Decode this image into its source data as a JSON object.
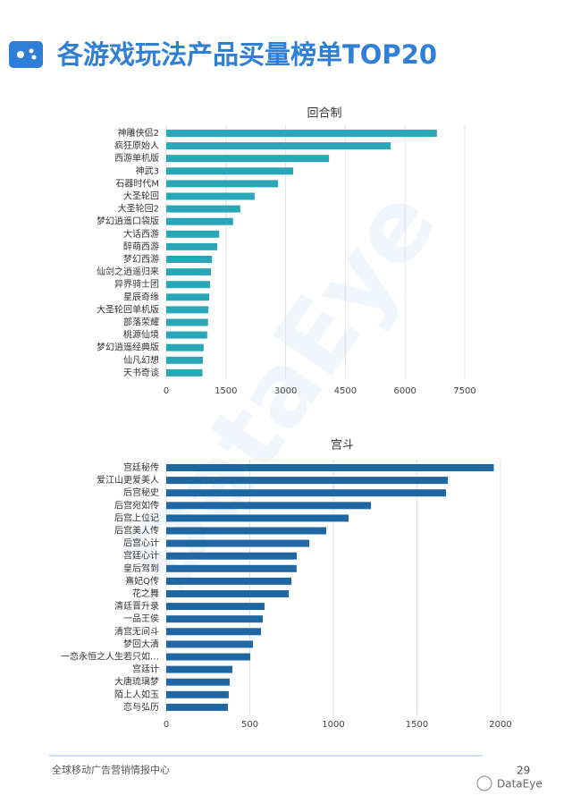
{
  "header": {
    "title": "各游戏玩法产品买量榜单TOP20"
  },
  "chart_data": [
    {
      "type": "bar",
      "orientation": "horizontal",
      "title": "回合制",
      "categories": [
        "神雕侠侣2",
        "疯狂原始人",
        "西游单机版",
        "神武3",
        "石器时代M",
        "大圣轮回",
        "大圣轮回2",
        "梦幻逍遥口袋版",
        "大话西游",
        "醉萌西游",
        "梦幻西游",
        "仙剑之逍遥归来",
        "异界骑士团",
        "星辰奇缘",
        "大圣轮回单机版",
        "部落荣耀",
        "桃源仙境",
        "梦幻逍遥经典版",
        "仙凡幻想",
        "天书奇谈"
      ],
      "values": [
        6800,
        5640,
        4090,
        3190,
        2810,
        2220,
        1860,
        1680,
        1330,
        1280,
        1150,
        1120,
        1100,
        1080,
        1060,
        1050,
        1030,
        940,
        920,
        910
      ],
      "color": "#2aa7b6",
      "xlim": [
        0,
        7500
      ],
      "xticks": [
        0,
        1500,
        3000,
        4500,
        6000,
        7500
      ],
      "grid": true
    },
    {
      "type": "bar",
      "orientation": "horizontal",
      "title": "宫斗",
      "categories": [
        "宫廷秘传",
        "爱江山更爱美人",
        "后宫秘史",
        "后宫宛如传",
        "后宫上位记",
        "后宫美人传",
        "后宫心计",
        "宫廷心计",
        "皇后驾到",
        "熹妃Q传",
        "花之舞",
        "清廷晋升录",
        "一品王侯",
        "清宫无间斗",
        "梦回大清",
        "一恋永恒之人生若只如…",
        "宫廷计",
        "大唐琉璃梦",
        "陌上人如玉",
        "恋与弘历"
      ],
      "values": [
        1960,
        1685,
        1674,
        1225,
        1091,
        957,
        856,
        781,
        780,
        749,
        733,
        588,
        578,
        567,
        519,
        503,
        396,
        380,
        374,
        369
      ],
      "color": "#1f67a3",
      "xlim": [
        0,
        2000
      ],
      "xticks": [
        0,
        500,
        1000,
        1500,
        2000
      ],
      "grid": true
    }
  ],
  "watermark": "DataEye",
  "footer": {
    "text": "全球移动广告营销情报中心",
    "page": "29",
    "brand": "DataEye"
  }
}
